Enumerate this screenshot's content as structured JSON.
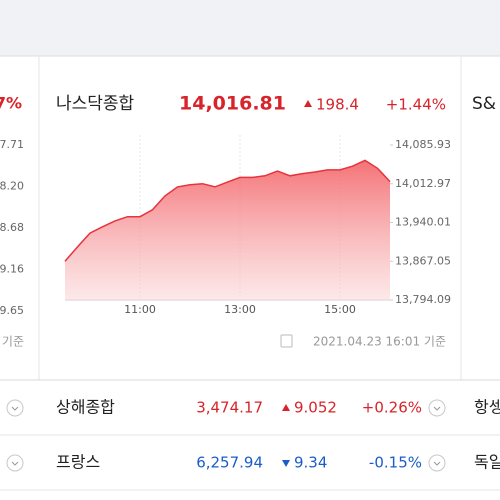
{
  "left_panel": {
    "change_pct": "7%",
    "yticks": [
      "7.71",
      "8.20",
      "8.68",
      "9.16",
      "9.65"
    ],
    "footer": "기준"
  },
  "chart_data": {
    "type": "area",
    "title": "나스닥종합",
    "price": "14,016.81",
    "direction": "up",
    "change": "198.4",
    "change_pct": "+1.44%",
    "x": [
      "09:30",
      "09:45",
      "10:00",
      "10:15",
      "10:30",
      "10:45",
      "11:00",
      "11:15",
      "11:30",
      "11:45",
      "12:00",
      "12:15",
      "12:30",
      "12:45",
      "13:00",
      "13:15",
      "13:30",
      "13:45",
      "14:00",
      "14:15",
      "14:30",
      "14:45",
      "15:00",
      "15:15",
      "15:30",
      "15:45",
      "16:00"
    ],
    "values": [
      13867,
      13894,
      13920,
      13932,
      13943,
      13951,
      13951,
      13964,
      13990,
      14007,
      14011,
      14013,
      14007,
      14016,
      14025,
      14025,
      14028,
      14037,
      14028,
      14032,
      14035,
      14039,
      14039,
      14046,
      14057,
      14042,
      14017
    ],
    "color": "#e8323c",
    "xlim": [
      "09:30",
      "16:00"
    ],
    "xticks": [
      "11:00",
      "13:00",
      "15:00"
    ],
    "ylim": [
      13794.09,
      14085.93
    ],
    "yticks": [
      {
        "value": 14085.93,
        "label": "14,085.93"
      },
      {
        "value": 14012.97,
        "label": "14,012.97"
      },
      {
        "value": 13940.01,
        "label": "13,940.01"
      },
      {
        "value": 13867.05,
        "label": "13,867.05"
      },
      {
        "value": 13794.09,
        "label": "13,794.09"
      }
    ],
    "grid": true,
    "timestamp": "2021.04.23 16:01 기준"
  },
  "right_panel": {
    "title": "S&"
  },
  "rows": [
    {
      "name": "상해종합",
      "price": "3,474.17",
      "direction": "up",
      "change": "9.052",
      "change_pct": "+0.26%",
      "next": "항셍"
    },
    {
      "name": "프랑스",
      "price": "6,257.94",
      "direction": "down",
      "change": "9.34",
      "change_pct": "-0.15%",
      "next": "독일"
    }
  ]
}
